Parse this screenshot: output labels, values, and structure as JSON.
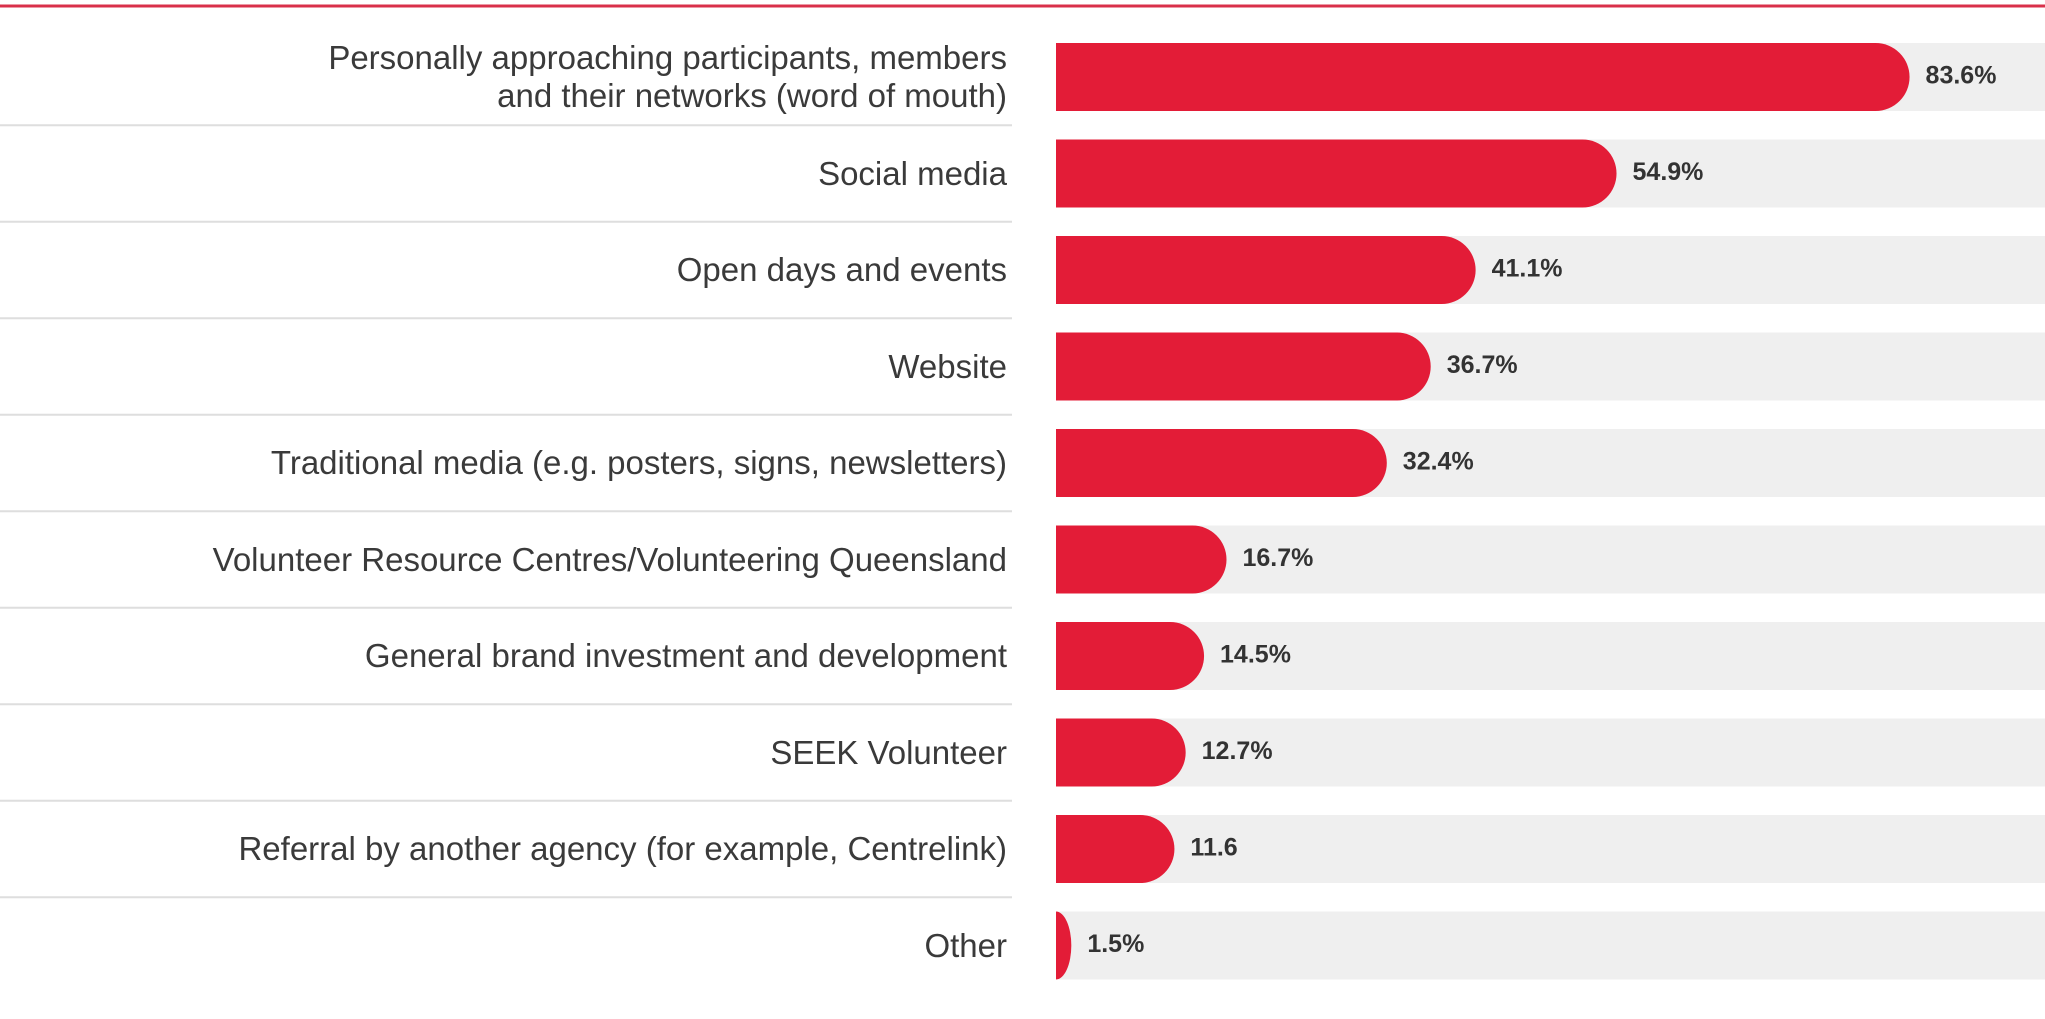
{
  "chart_data": {
    "type": "bar",
    "orientation": "horizontal",
    "categories": [
      "Personally approaching participants, members\nand their networks (word of mouth)",
      "Social media",
      "Open days and events",
      "Website",
      "Traditional media (e.g. posters, signs, newsletters)",
      "Volunteer Resource Centres/Volunteering Queensland",
      "General brand investment and development",
      "SEEK Volunteer",
      "Referral by another agency (for example, Centrelink)",
      "Other"
    ],
    "values": [
      83.6,
      54.9,
      41.1,
      36.7,
      32.4,
      16.7,
      14.5,
      12.7,
      11.6,
      1.5
    ],
    "value_labels": [
      "83.6%",
      "54.9%",
      "41.1%",
      "36.7%",
      "32.4%",
      "16.7%",
      "14.5%",
      "12.7%",
      "11.6",
      "1.5%"
    ],
    "color": "#e31c37",
    "track_color": "#efefef",
    "xlim": [
      0,
      100
    ]
  }
}
